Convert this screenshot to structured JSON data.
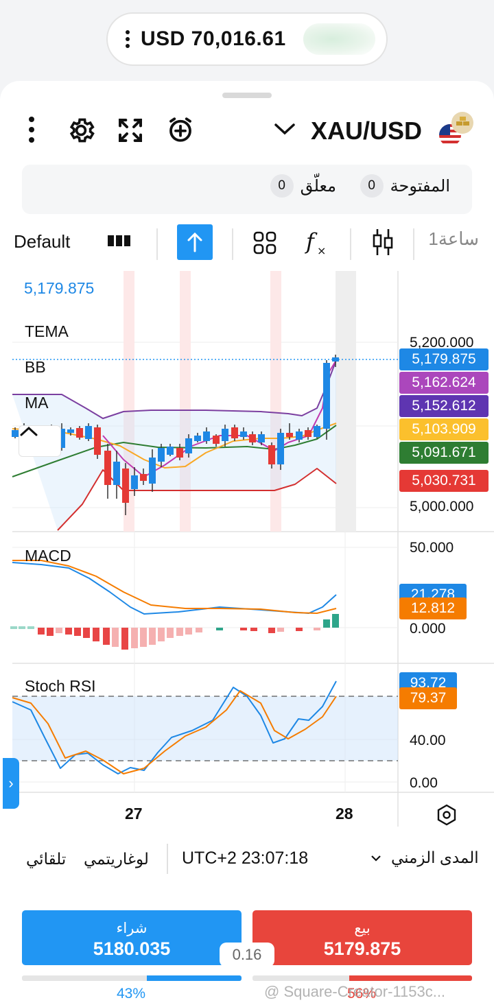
{
  "balance": {
    "value": "USD 70,016.61"
  },
  "header": {
    "symbol": "XAU/USD"
  },
  "orders": {
    "open_label": "المفتوحة",
    "open_count": "0",
    "pending_label": "معلّق",
    "pending_count": "0"
  },
  "toolbar": {
    "template_label": "Default",
    "timeframe_label": "1ساعة"
  },
  "chart": {
    "current_price": "5,179.875",
    "price_pane": {
      "labels": [
        "TEMA",
        "BB",
        "MA"
      ],
      "axis_ticks": [
        "5,200.000",
        "5,000.000"
      ],
      "tags": [
        {
          "value": "5,179.875",
          "color": "#1e88e5"
        },
        {
          "value": "5,162.624",
          "color": "#ab47bc"
        },
        {
          "value": "5,152.612",
          "color": "#5e35b1"
        },
        {
          "value": "5,103.909",
          "color": "#fbc02d"
        },
        {
          "value": "5,091.671",
          "color": "#2e7d32"
        },
        {
          "value": "5,030.731",
          "color": "#e53935"
        }
      ]
    },
    "macd_pane": {
      "label": "MACD",
      "axis_ticks": [
        "50.000",
        "0.000"
      ],
      "tags": [
        {
          "value": "21.278",
          "color": "#1e88e5"
        },
        {
          "value": "12.812",
          "color": "#f57c00"
        }
      ]
    },
    "stoch_pane": {
      "label": "Stoch RSI",
      "axis_ticks": [
        "40.00",
        "0.00"
      ],
      "tags": [
        {
          "value": "93.72",
          "color": "#1e88e5"
        },
        {
          "value": "79.37",
          "color": "#f57c00"
        }
      ]
    },
    "dates": [
      "27",
      "28"
    ]
  },
  "info": {
    "auto_label": "تلقائي",
    "log_label": "لوغاريتمي",
    "time": "UTC+2 23:07:18",
    "range_label": "المدى الزمني"
  },
  "trade": {
    "buy": {
      "label": "شراء",
      "price": "5180.035",
      "color": "#2196f3"
    },
    "sell": {
      "label": "بيع",
      "price": "5179.875",
      "color": "#e8453c"
    },
    "spread": "0.16",
    "buy_pct": "43%",
    "sell_pct": "56%",
    "buy_fraction": 0.43,
    "sell_fraction": 0.56
  },
  "watermark": "@ Square-Creator-1153c..."
}
